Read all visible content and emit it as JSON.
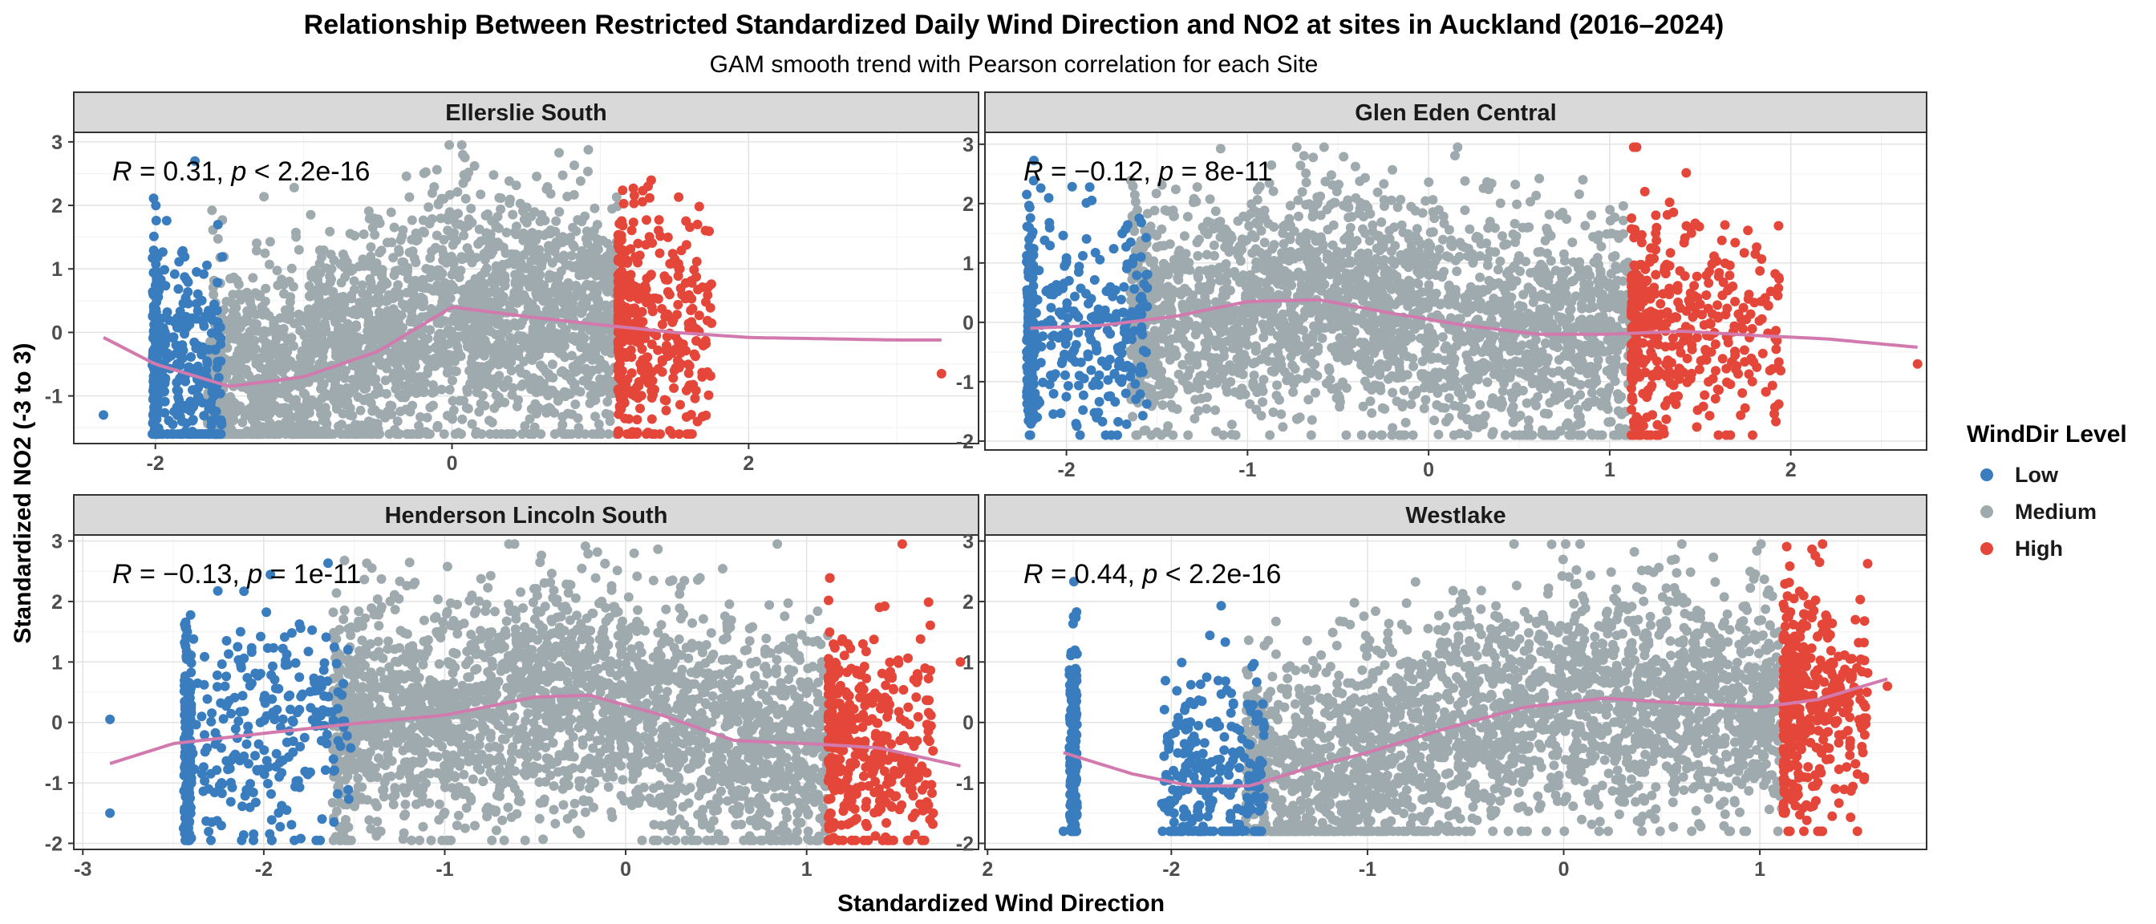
{
  "chart_data": {
    "type": "scatter",
    "title": "Relationship Between Restricted Standardized Daily Wind Direction and NO2 at sites in Auckland (2016–2024)",
    "subtitle": "GAM smooth trend with Pearson correlation for each Site",
    "xlabel": "Standardized Wind Direction",
    "ylabel": "Standardized NO2 (-3 to 3)",
    "legend": {
      "title": "WindDir Level",
      "position": "right",
      "entries": [
        {
          "label": "Low",
          "color": "#3A7DBF"
        },
        {
          "label": "Medium",
          "color": "#9EAAAE"
        },
        {
          "label": "High",
          "color": "#E4473A"
        }
      ]
    },
    "smooth_color": "#D279AE",
    "grid": true,
    "panels": [
      {
        "strip": "Ellerslie South",
        "annotation": {
          "r_prefix": "R",
          "r_value": " = 0.31, ",
          "p_prefix": "p",
          "p_value": " < 2.2e-16"
        },
        "xlim": [
          -2.55,
          3.55
        ],
        "ylim": [
          -1.75,
          3.15
        ],
        "xticks": [
          -2,
          0,
          2
        ],
        "xtick_labels": [
          "-2",
          "0",
          "2"
        ],
        "yticks": [
          -1,
          0,
          1,
          2,
          3
        ],
        "ytick_labels": [
          "-1",
          "0",
          "1",
          "2",
          "3"
        ],
        "low_range": [
          -2.0,
          -1.55
        ],
        "high_range": [
          1.12,
          1.75
        ],
        "low_stripe": -2.0,
        "body": {
          "x": [
            -2.3,
            3.3
          ],
          "ymin": -1.6,
          "ymax": 2.95,
          "center": 0.0,
          "spread": 0.95
        },
        "outliers": [
          {
            "x": -2.35,
            "y": -1.3
          },
          {
            "x": 3.3,
            "y": -0.65
          }
        ],
        "smooth": {
          "x": [
            -2.35,
            -2.0,
            -1.5,
            -1.0,
            -0.5,
            0.0,
            0.5,
            1.0,
            1.5,
            2.0,
            2.5,
            3.0,
            3.3
          ],
          "y": [
            -0.08,
            -0.5,
            -0.85,
            -0.7,
            -0.3,
            0.4,
            0.25,
            0.12,
            0.0,
            -0.08,
            -0.1,
            -0.12,
            -0.12
          ]
        }
      },
      {
        "strip": "Glen Eden Central",
        "annotation": {
          "r_prefix": "R",
          "r_value": " = −0.12, ",
          "p_prefix": "p",
          "p_value": " = 8e-11"
        },
        "xlim": [
          -2.45,
          2.75
        ],
        "ylim": [
          -2.15,
          3.2
        ],
        "xticks": [
          -2,
          -1,
          0,
          1,
          2
        ],
        "xtick_labels": [
          "-2",
          "-1",
          "0",
          "1",
          "2"
        ],
        "yticks": [
          -2,
          -1,
          0,
          1,
          2,
          3
        ],
        "ytick_labels": [
          "-2",
          "-1",
          "0",
          "1",
          "2",
          "3"
        ],
        "low_range": [
          -2.2,
          -1.55
        ],
        "high_range": [
          1.12,
          1.95
        ],
        "low_stripe": -2.2,
        "body": {
          "x": [
            -2.2,
            2.7
          ],
          "ymin": -1.9,
          "ymax": 2.95,
          "center": -0.1,
          "spread": 0.95
        },
        "outliers": [
          {
            "x": 2.7,
            "y": -0.7
          }
        ],
        "smooth": {
          "x": [
            -2.2,
            -1.8,
            -1.4,
            -1.0,
            -0.6,
            -0.2,
            0.2,
            0.6,
            1.0,
            1.4,
            1.8,
            2.2,
            2.7
          ],
          "y": [
            -0.1,
            -0.05,
            0.1,
            0.35,
            0.38,
            0.15,
            -0.05,
            -0.2,
            -0.2,
            -0.15,
            -0.22,
            -0.28,
            -0.42
          ]
        }
      },
      {
        "strip": "Henderson Lincoln South",
        "annotation": {
          "r_prefix": "R",
          "r_value": " = −0.13, ",
          "p_prefix": "p",
          "p_value": " = 1e-11"
        },
        "xlim": [
          -3.05,
          1.95
        ],
        "ylim": [
          -2.1,
          3.1
        ],
        "xticks": [
          -3,
          -2,
          -1,
          0,
          1,
          2
        ],
        "xtick_labels": [
          "-3",
          "-2",
          "-1",
          "0",
          "1",
          "2"
        ],
        "yticks": [
          -2,
          -1,
          0,
          1,
          2,
          3
        ],
        "ytick_labels": [
          "-2",
          "-1",
          "0",
          "1",
          "2",
          "3"
        ],
        "low_range": [
          -2.45,
          -1.52
        ],
        "high_range": [
          1.12,
          1.7
        ],
        "low_stripe": -2.42,
        "body": {
          "x": [
            -2.85,
            1.85
          ],
          "ymin": -1.95,
          "ymax": 2.95,
          "center": -0.1,
          "spread": 0.95
        },
        "outliers": [
          {
            "x": -2.85,
            "y": 0.05
          },
          {
            "x": -2.85,
            "y": -1.5
          },
          {
            "x": 1.85,
            "y": 1.0
          }
        ],
        "smooth": {
          "x": [
            -2.85,
            -2.5,
            -2.0,
            -1.5,
            -1.0,
            -0.5,
            -0.2,
            0.2,
            0.6,
            1.0,
            1.4,
            1.85
          ],
          "y": [
            -0.68,
            -0.35,
            -0.18,
            -0.02,
            0.12,
            0.42,
            0.45,
            0.12,
            -0.3,
            -0.35,
            -0.42,
            -0.72
          ]
        }
      },
      {
        "strip": "Westlake",
        "annotation": {
          "r_prefix": "R",
          "r_value": " = 0.44, ",
          "p_prefix": "p",
          "p_value": " < 2.2e-16"
        },
        "xlim": [
          -2.95,
          1.85
        ],
        "ylim": [
          -2.1,
          3.1
        ],
        "xticks": [
          -2,
          -1,
          0,
          1
        ],
        "xtick_labels": [
          "-2",
          "-1",
          "0",
          "1"
        ],
        "yticks": [
          -2,
          -1,
          0,
          1,
          2,
          3
        ],
        "ytick_labels": [
          "-2",
          "-1",
          "0",
          "1",
          "2",
          "3"
        ],
        "low_range": [
          -2.05,
          -1.52
        ],
        "high_range": [
          1.12,
          1.55
        ],
        "low_stripe": -2.5,
        "body": {
          "x": [
            -2.55,
            1.65
          ],
          "ymin": -1.8,
          "ymax": 2.95,
          "center": 0.0,
          "spread": 0.95
        },
        "outliers": [
          {
            "x": -2.55,
            "y": -1.8
          },
          {
            "x": 1.65,
            "y": 0.6
          }
        ],
        "smooth": {
          "x": [
            -2.55,
            -2.2,
            -1.9,
            -1.6,
            -1.3,
            -1.0,
            -0.6,
            -0.2,
            0.2,
            0.6,
            1.0,
            1.3,
            1.65
          ],
          "y": [
            -0.5,
            -0.85,
            -1.05,
            -1.05,
            -0.75,
            -0.5,
            -0.1,
            0.25,
            0.4,
            0.32,
            0.25,
            0.38,
            0.72
          ]
        }
      }
    ]
  }
}
